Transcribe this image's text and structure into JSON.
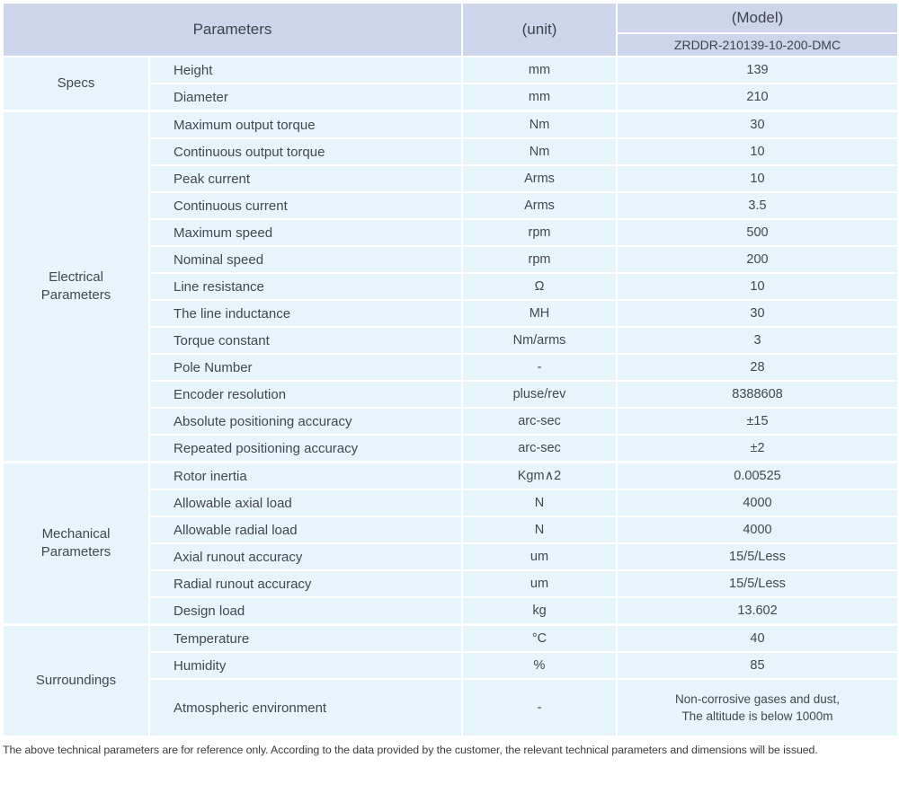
{
  "header": {
    "parameters_label": "Parameters",
    "unit_label": "(unit)",
    "model_label": "(Model)",
    "model_value": "ZRDDR-210139-10-200-DMC"
  },
  "sections": [
    {
      "category": "Specs",
      "rows": [
        {
          "param": "Height",
          "unit": "mm",
          "value": "139"
        },
        {
          "param": "Diameter",
          "unit": "mm",
          "value": "210"
        }
      ]
    },
    {
      "category": "Electrical\nParameters",
      "rows": [
        {
          "param": "Maximum output torque",
          "unit": "Nm",
          "value": "30"
        },
        {
          "param": "Continuous output torque",
          "unit": "Nm",
          "value": "10"
        },
        {
          "param": "Peak current",
          "unit": "Arms",
          "value": "10"
        },
        {
          "param": "Continuous current",
          "unit": "Arms",
          "value": "3.5"
        },
        {
          "param": "Maximum speed",
          "unit": "rpm",
          "value": "500"
        },
        {
          "param": "Nominal speed",
          "unit": "rpm",
          "value": "200"
        },
        {
          "param": "Line resistance",
          "unit": "Ω",
          "value": "10"
        },
        {
          "param": "The line inductance",
          "unit": "MH",
          "value": "30"
        },
        {
          "param": "Torque constant",
          "unit": "Nm/arms",
          "value": "3"
        },
        {
          "param": "Pole Number",
          "unit": "-",
          "value": "28"
        },
        {
          "param": "Encoder resolution",
          "unit": "pluse/rev",
          "value": "8388608"
        },
        {
          "param": "Absolute positioning accuracy",
          "unit": "arc-sec",
          "value": "±15"
        },
        {
          "param": "Repeated positioning accuracy",
          "unit": "arc-sec",
          "value": "±2"
        }
      ]
    },
    {
      "category": "Mechanical\nParameters",
      "rows": [
        {
          "param": "Rotor inertia",
          "unit": "Kgm∧2",
          "value": "0.00525"
        },
        {
          "param": "Allowable axial load",
          "unit": "N",
          "value": "4000"
        },
        {
          "param": "Allowable radial load",
          "unit": "N",
          "value": "4000"
        },
        {
          "param": "Axial runout accuracy",
          "unit": "um",
          "value": "15/5/Less"
        },
        {
          "param": "Radial runout accuracy",
          "unit": "um",
          "value": "15/5/Less"
        },
        {
          "param": "Design load",
          "unit": "kg",
          "value": "13.602"
        }
      ]
    },
    {
      "category": "Surroundings",
      "rows": [
        {
          "param": "Temperature",
          "unit": "°C",
          "value": "40"
        },
        {
          "param": "Humidity",
          "unit": "%",
          "value": "85"
        },
        {
          "param": "Atmospheric environment",
          "unit": "-",
          "tall": true,
          "value_lines": [
            "Non-corrosive gases and dust,",
            "The altitude is below 1000m"
          ]
        }
      ]
    }
  ],
  "footer": {
    "note": "The above technical parameters are for reference only. According to the data provided by the customer, the relevant technical parameters and dimensions will be issued."
  },
  "colors": {
    "header_bg": "#ccd5e9",
    "row_bg": "#e6f4fc",
    "divider": "#ffffff",
    "text": "#43474e"
  }
}
